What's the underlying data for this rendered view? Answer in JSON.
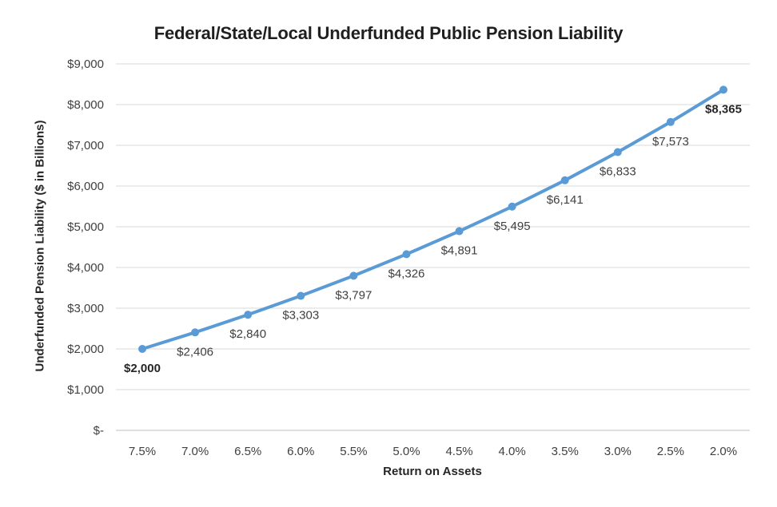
{
  "chart_data": {
    "type": "line",
    "title": "Federal/State/Local Underfunded Public Pension Liability",
    "xlabel": "Return on Assets",
    "ylabel": "Underfunded Pension Liability ($ in Billions)",
    "categories": [
      "7.5%",
      "7.0%",
      "6.5%",
      "6.0%",
      "5.5%",
      "5.0%",
      "4.5%",
      "4.0%",
      "3.5%",
      "3.0%",
      "2.5%",
      "2.0%"
    ],
    "values": [
      2000,
      2406,
      2840,
      3303,
      3797,
      4326,
      4891,
      5495,
      6141,
      6833,
      7573,
      8365
    ],
    "point_labels": [
      "$2,000",
      "$2,406",
      "$2,840",
      "$3,303",
      "$3,797",
      "$4,326",
      "$4,891",
      "$5,495",
      "$6,141",
      "$6,833",
      "$7,573",
      "$8,365"
    ],
    "emphasized_label_indices": [
      0,
      11
    ],
    "y_ticks": [
      {
        "value": 0,
        "label": "$-"
      },
      {
        "value": 1000,
        "label": "$1,000"
      },
      {
        "value": 2000,
        "label": "$2,000"
      },
      {
        "value": 3000,
        "label": "$3,000"
      },
      {
        "value": 4000,
        "label": "$4,000"
      },
      {
        "value": 5000,
        "label": "$5,000"
      },
      {
        "value": 6000,
        "label": "$6,000"
      },
      {
        "value": 7000,
        "label": "$7,000"
      },
      {
        "value": 8000,
        "label": "$8,000"
      },
      {
        "value": 9000,
        "label": "$9,000"
      }
    ],
    "ylim": [
      0,
      9000
    ],
    "grid": true,
    "legend": "none",
    "colors": {
      "line": "#5B9BD5",
      "marker": "#5B9BD5",
      "gridline": "#D9D9D9",
      "axis_line": "#BFBFBF",
      "tick_text": "#404040",
      "emphasis_text": "#262626"
    }
  }
}
